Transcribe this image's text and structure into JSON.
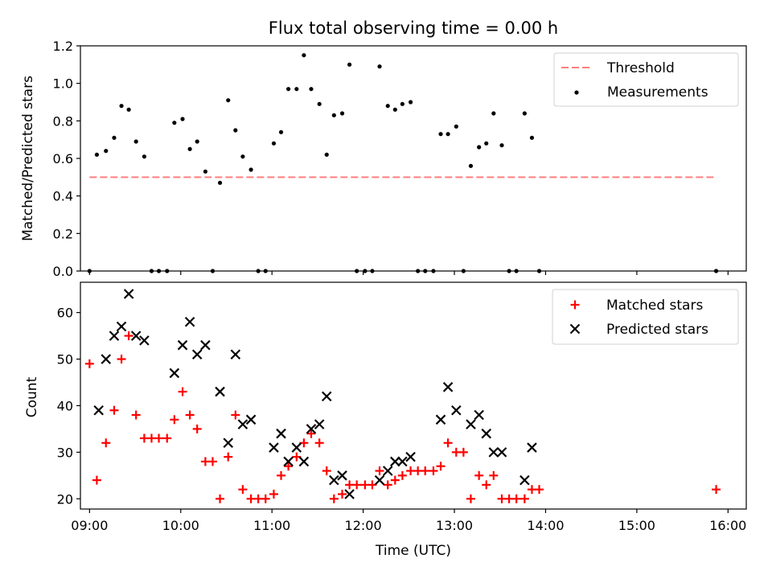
{
  "figure_title": "Flux total observing time = 0.00 h",
  "colors": {
    "threshold": "#ff7f7f",
    "measurement": "#000000",
    "matched": "#ff0000",
    "predicted": "#000000"
  },
  "chart_data": [
    {
      "type": "scatter",
      "ylabel": "Matched/Predicted stars",
      "xlim": [
        8.9,
        16.2
      ],
      "ylim": [
        0,
        1.2
      ],
      "yticks": [
        0.0,
        0.2,
        0.4,
        0.6,
        0.8,
        1.0,
        1.2
      ],
      "ytick_labels": [
        "0.0",
        "0.2",
        "0.4",
        "0.6",
        "0.8",
        "1.0",
        "1.2"
      ],
      "legend": {
        "placement": "upper right",
        "entries": [
          "Threshold",
          "Measurements"
        ]
      },
      "threshold": {
        "label": "Threshold",
        "value": 0.5,
        "x_start": 9.0,
        "x_end": 15.87,
        "style": "dashed"
      },
      "series": [
        {
          "name": "Measurements",
          "marker": "dot",
          "points": [
            [
              9.0,
              0.0
            ],
            [
              9.08,
              0.62
            ],
            [
              9.18,
              0.64
            ],
            [
              9.27,
              0.71
            ],
            [
              9.35,
              0.88
            ],
            [
              9.43,
              0.86
            ],
            [
              9.51,
              0.69
            ],
            [
              9.6,
              0.61
            ],
            [
              9.68,
              0.0
            ],
            [
              9.76,
              0.0
            ],
            [
              9.85,
              0.0
            ],
            [
              9.93,
              0.79
            ],
            [
              10.02,
              0.81
            ],
            [
              10.1,
              0.65
            ],
            [
              10.18,
              0.69
            ],
            [
              10.27,
              0.53
            ],
            [
              10.35,
              0.0
            ],
            [
              10.43,
              0.47
            ],
            [
              10.52,
              0.91
            ],
            [
              10.6,
              0.75
            ],
            [
              10.68,
              0.61
            ],
            [
              10.77,
              0.54
            ],
            [
              10.85,
              0.0
            ],
            [
              10.93,
              0.0
            ],
            [
              11.02,
              0.68
            ],
            [
              11.1,
              0.74
            ],
            [
              11.18,
              0.97
            ],
            [
              11.27,
              0.97
            ],
            [
              11.35,
              1.15
            ],
            [
              11.43,
              0.97
            ],
            [
              11.52,
              0.89
            ],
            [
              11.6,
              0.62
            ],
            [
              11.68,
              0.83
            ],
            [
              11.77,
              0.84
            ],
            [
              11.85,
              1.1
            ],
            [
              11.93,
              0.0
            ],
            [
              12.02,
              0.0
            ],
            [
              12.1,
              0.0
            ],
            [
              12.18,
              1.09
            ],
            [
              12.27,
              0.88
            ],
            [
              12.35,
              0.86
            ],
            [
              12.43,
              0.89
            ],
            [
              12.52,
              0.9
            ],
            [
              12.6,
              0.0
            ],
            [
              12.68,
              0.0
            ],
            [
              12.77,
              0.0
            ],
            [
              12.85,
              0.73
            ],
            [
              12.93,
              0.73
            ],
            [
              13.02,
              0.77
            ],
            [
              13.1,
              0.0
            ],
            [
              13.18,
              0.56
            ],
            [
              13.27,
              0.66
            ],
            [
              13.35,
              0.68
            ],
            [
              13.43,
              0.84
            ],
            [
              13.52,
              0.67
            ],
            [
              13.6,
              0.0
            ],
            [
              13.68,
              0.0
            ],
            [
              13.77,
              0.84
            ],
            [
              13.85,
              0.71
            ],
            [
              13.93,
              0.0
            ],
            [
              15.87,
              0.0
            ]
          ]
        }
      ]
    },
    {
      "type": "scatter",
      "ylabel": "Count",
      "xlabel": "Time (UTC)",
      "xlim": [
        8.9,
        16.2
      ],
      "ylim": [
        17.8,
        66.5
      ],
      "yticks": [
        20,
        30,
        40,
        50,
        60
      ],
      "ytick_labels": [
        "20",
        "30",
        "40",
        "50",
        "60"
      ],
      "xticks": [
        9,
        10,
        11,
        12,
        13,
        14,
        15,
        16
      ],
      "xtick_labels": [
        "09:00",
        "10:00",
        "11:00",
        "12:00",
        "13:00",
        "14:00",
        "15:00",
        "16:00"
      ],
      "legend": {
        "placement": "upper right",
        "entries": [
          "Matched stars",
          "Predicted stars"
        ]
      },
      "series": [
        {
          "name": "Matched stars",
          "marker": "plus",
          "points": [
            [
              9.0,
              49
            ],
            [
              9.08,
              24
            ],
            [
              9.18,
              32
            ],
            [
              9.27,
              39
            ],
            [
              9.35,
              50
            ],
            [
              9.43,
              55
            ],
            [
              9.51,
              38
            ],
            [
              9.6,
              33
            ],
            [
              9.68,
              33
            ],
            [
              9.76,
              33
            ],
            [
              9.85,
              33
            ],
            [
              9.93,
              37
            ],
            [
              10.02,
              43
            ],
            [
              10.1,
              38
            ],
            [
              10.18,
              35
            ],
            [
              10.27,
              28
            ],
            [
              10.35,
              28
            ],
            [
              10.43,
              20
            ],
            [
              10.52,
              29
            ],
            [
              10.6,
              38
            ],
            [
              10.68,
              22
            ],
            [
              10.77,
              20
            ],
            [
              10.85,
              20
            ],
            [
              10.93,
              20
            ],
            [
              11.02,
              21
            ],
            [
              11.1,
              25
            ],
            [
              11.18,
              27
            ],
            [
              11.27,
              29
            ],
            [
              11.35,
              32
            ],
            [
              11.43,
              34
            ],
            [
              11.52,
              32
            ],
            [
              11.6,
              26
            ],
            [
              11.68,
              20
            ],
            [
              11.77,
              21
            ],
            [
              11.85,
              23
            ],
            [
              11.93,
              23
            ],
            [
              12.02,
              23
            ],
            [
              12.1,
              23
            ],
            [
              12.18,
              26
            ],
            [
              12.27,
              23
            ],
            [
              12.35,
              24
            ],
            [
              12.43,
              25
            ],
            [
              12.52,
              26
            ],
            [
              12.6,
              26
            ],
            [
              12.68,
              26
            ],
            [
              12.77,
              26
            ],
            [
              12.85,
              27
            ],
            [
              12.93,
              32
            ],
            [
              13.02,
              30
            ],
            [
              13.1,
              30
            ],
            [
              13.18,
              20
            ],
            [
              13.27,
              25
            ],
            [
              13.35,
              23
            ],
            [
              13.43,
              25
            ],
            [
              13.52,
              20
            ],
            [
              13.6,
              20
            ],
            [
              13.68,
              20
            ],
            [
              13.77,
              20
            ],
            [
              13.85,
              22
            ],
            [
              13.93,
              22
            ],
            [
              15.87,
              22
            ]
          ]
        },
        {
          "name": "Predicted stars",
          "marker": "x",
          "points": [
            [
              9.1,
              39
            ],
            [
              9.18,
              50
            ],
            [
              9.27,
              55
            ],
            [
              9.35,
              57
            ],
            [
              9.43,
              64
            ],
            [
              9.51,
              55
            ],
            [
              9.6,
              54
            ],
            [
              9.93,
              47
            ],
            [
              10.02,
              53
            ],
            [
              10.1,
              58
            ],
            [
              10.18,
              51
            ],
            [
              10.27,
              53
            ],
            [
              10.43,
              43
            ],
            [
              10.52,
              32
            ],
            [
              10.6,
              51
            ],
            [
              10.68,
              36
            ],
            [
              10.77,
              37
            ],
            [
              11.02,
              31
            ],
            [
              11.1,
              34
            ],
            [
              11.18,
              28
            ],
            [
              11.27,
              31
            ],
            [
              11.35,
              28
            ],
            [
              11.43,
              35
            ],
            [
              11.52,
              36
            ],
            [
              11.6,
              42
            ],
            [
              11.68,
              24
            ],
            [
              11.77,
              25
            ],
            [
              11.85,
              21
            ],
            [
              12.18,
              24
            ],
            [
              12.27,
              26
            ],
            [
              12.35,
              28
            ],
            [
              12.43,
              28
            ],
            [
              12.52,
              29
            ],
            [
              12.85,
              37
            ],
            [
              12.93,
              44
            ],
            [
              13.02,
              39
            ],
            [
              13.18,
              36
            ],
            [
              13.27,
              38
            ],
            [
              13.35,
              34
            ],
            [
              13.43,
              30
            ],
            [
              13.52,
              30
            ],
            [
              13.77,
              24
            ],
            [
              13.85,
              31
            ]
          ]
        }
      ]
    }
  ]
}
